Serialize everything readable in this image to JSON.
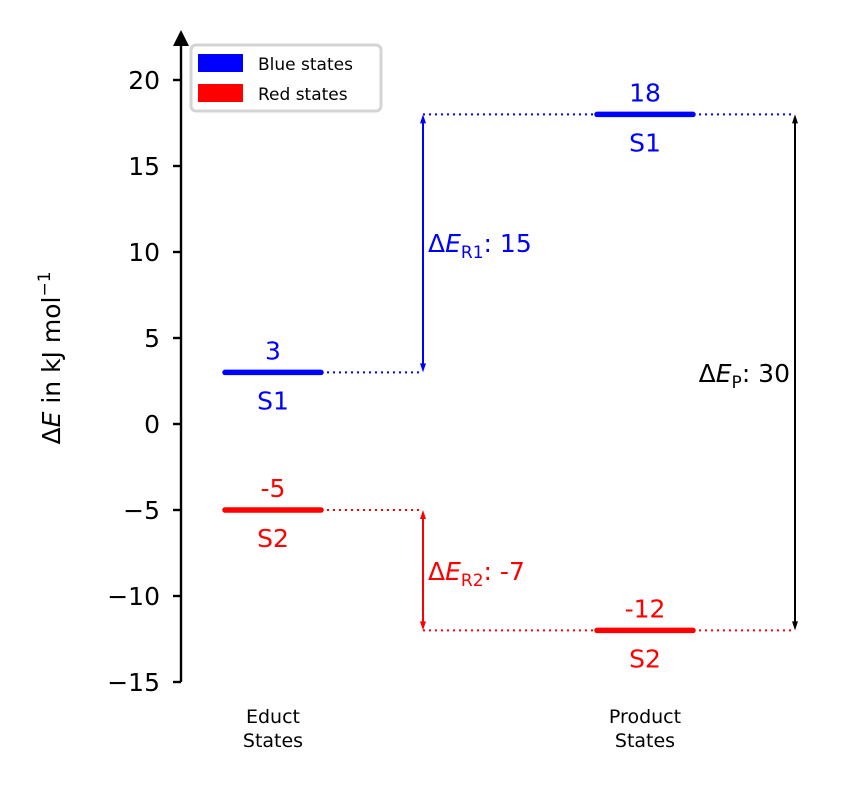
{
  "chart_data": {
    "type": "energy-level-diagram",
    "title": "",
    "ylabel": "ΔE in kJ mol⁻¹",
    "ylabel_parts": {
      "delta": "Δ",
      "var": "E",
      "rest": " in kJ mol",
      "sup": "−1"
    },
    "ylim": [
      -15,
      22
    ],
    "yticks": [
      20,
      15,
      10,
      5,
      0,
      -5,
      -10,
      -15
    ],
    "ytick_labels": [
      "20",
      "15",
      "10",
      "5",
      "0",
      "−5",
      "−10",
      "−15"
    ],
    "grid": false,
    "categories": [
      "Educt\nStates",
      "Product\nStates"
    ],
    "category_lines": [
      [
        "Educt",
        "States"
      ],
      [
        "Product",
        "States"
      ]
    ],
    "legend": {
      "position": "upper left",
      "entries": [
        {
          "label": "Blue states",
          "color": "#0000ff"
        },
        {
          "label": "Red states",
          "color": "#ff0000"
        }
      ]
    },
    "series": [
      {
        "name": "Blue states",
        "color": "#0000ff",
        "state": "S1",
        "values": [
          3,
          18
        ]
      },
      {
        "name": "Red states",
        "color": "#ff0000",
        "state": "S2",
        "values": [
          -5,
          -12
        ]
      }
    ],
    "levels": [
      {
        "category": 0,
        "value": 3,
        "label": "3",
        "state": "S1",
        "color": "#0000ff"
      },
      {
        "category": 0,
        "value": -5,
        "label": "-5",
        "state": "S2",
        "color": "#ff0000"
      },
      {
        "category": 1,
        "value": 18,
        "label": "18",
        "state": "S1",
        "color": "#0000ff"
      },
      {
        "category": 1,
        "value": -12,
        "label": "-12",
        "state": "S2",
        "color": "#ff0000"
      }
    ],
    "annotations": [
      {
        "name": "ΔE_R1",
        "base": "ΔE",
        "sub": "R1",
        "text": ": 15",
        "value": 15,
        "from": 3,
        "to": 18,
        "color": "#0000ff"
      },
      {
        "name": "ΔE_R2",
        "base": "ΔE",
        "sub": "R2",
        "text": ": -7",
        "value": -7,
        "from": -5,
        "to": -12,
        "color": "#ff0000"
      },
      {
        "name": "ΔE_P",
        "base": "ΔE",
        "sub": "P",
        "text": ": 30",
        "value": 30,
        "from": -12,
        "to": 18,
        "color": "#000000"
      }
    ]
  }
}
